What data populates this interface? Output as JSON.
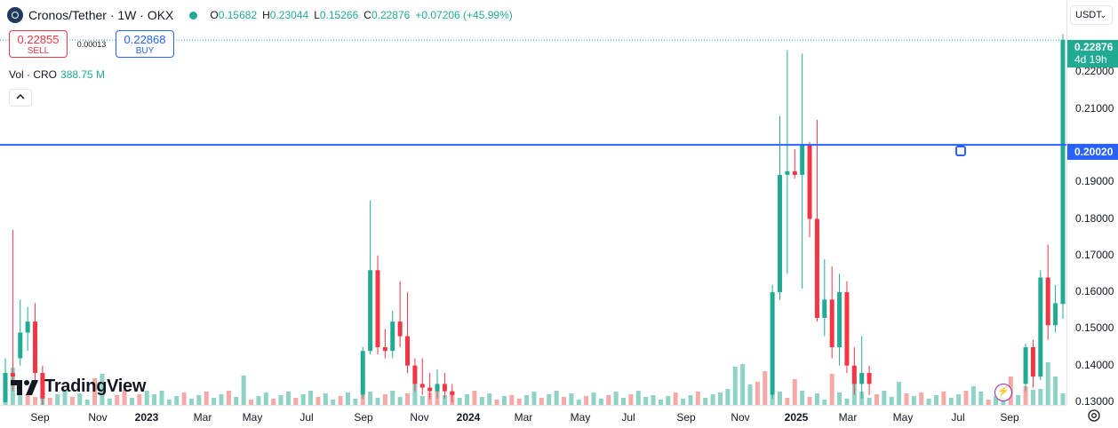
{
  "symbol": {
    "title": "Cronos/Tether · 1W · OKX",
    "ohlc": [
      {
        "key": "O",
        "value": "0.15682"
      },
      {
        "key": "H",
        "value": "0.23044"
      },
      {
        "key": "L",
        "value": "0.15266"
      },
      {
        "key": "C",
        "value": "0.22876"
      },
      {
        "key": "",
        "value": "+0.07206 (+45.99%)"
      }
    ]
  },
  "trade": {
    "sell_price": "0.22855",
    "sell_label": "SELL",
    "spread": "0.00013",
    "buy_price": "0.22868",
    "buy_label": "BUY"
  },
  "volume": {
    "label": "Vol · CRO",
    "value": "388.75 M"
  },
  "collapse_icon": "chevron-up-icon",
  "logo_text": "TradingView",
  "currency": "USDT",
  "current_price": {
    "price": "0.22876",
    "countdown": "4d 19h"
  },
  "hline_price": "0.20020",
  "colors": {
    "up": "#22ab94",
    "down": "#f23645",
    "up_vol": "#8fd3c7",
    "down_vol": "#f7a9a7",
    "hline": "#2962ff"
  },
  "price_ticks": [
    "0.22000",
    "0.21000",
    "0.19000",
    "0.18000",
    "0.17000",
    "0.16000",
    "0.15000",
    "0.14000",
    "0.13000"
  ],
  "time_ticks": [
    {
      "label": "Sep",
      "bold": false
    },
    {
      "label": "Nov",
      "bold": false
    },
    {
      "label": "2023",
      "bold": true
    },
    {
      "label": "Mar",
      "bold": false
    },
    {
      "label": "May",
      "bold": false
    },
    {
      "label": "Jul",
      "bold": false
    },
    {
      "label": "Sep",
      "bold": false
    },
    {
      "label": "Nov",
      "bold": false
    },
    {
      "label": "2024",
      "bold": true
    },
    {
      "label": "Mar",
      "bold": false
    },
    {
      "label": "May",
      "bold": false
    },
    {
      "label": "Jul",
      "bold": false
    },
    {
      "label": "Sep",
      "bold": false
    },
    {
      "label": "Nov",
      "bold": false
    },
    {
      "label": "2025",
      "bold": true
    },
    {
      "label": "Mar",
      "bold": false
    },
    {
      "label": "May",
      "bold": false
    },
    {
      "label": "Jul",
      "bold": false
    },
    {
      "label": "Sep",
      "bold": false
    }
  ],
  "chart_data": {
    "type": "candlestick",
    "interval": "1W",
    "y_range": [
      0.13,
      0.232
    ],
    "candles": [
      {
        "i": 0,
        "o": 0.13,
        "h": 0.142,
        "l": 0.13,
        "c": 0.138
      },
      {
        "i": 1,
        "o": 0.138,
        "h": 0.177,
        "l": 0.133,
        "c": 0.137
      },
      {
        "i": 2,
        "o": 0.142,
        "h": 0.158,
        "l": 0.14,
        "c": 0.149
      },
      {
        "i": 3,
        "o": 0.149,
        "h": 0.156,
        "l": 0.144,
        "c": 0.152
      },
      {
        "i": 4,
        "o": 0.152,
        "h": 0.157,
        "l": 0.136,
        "c": 0.138
      },
      {
        "i": 5,
        "o": 0.138,
        "h": 0.14,
        "l": 0.129,
        "c": 0.131
      },
      {
        "i": 48,
        "o": 0.132,
        "h": 0.145,
        "l": 0.131,
        "c": 0.144
      },
      {
        "i": 49,
        "o": 0.144,
        "h": 0.185,
        "l": 0.143,
        "c": 0.166
      },
      {
        "i": 50,
        "o": 0.166,
        "h": 0.17,
        "l": 0.143,
        "c": 0.145
      },
      {
        "i": 51,
        "o": 0.145,
        "h": 0.15,
        "l": 0.142,
        "c": 0.144
      },
      {
        "i": 52,
        "o": 0.144,
        "h": 0.155,
        "l": 0.142,
        "c": 0.152
      },
      {
        "i": 53,
        "o": 0.152,
        "h": 0.163,
        "l": 0.145,
        "c": 0.148
      },
      {
        "i": 54,
        "o": 0.148,
        "h": 0.16,
        "l": 0.138,
        "c": 0.14
      },
      {
        "i": 55,
        "o": 0.14,
        "h": 0.142,
        "l": 0.133,
        "c": 0.135
      },
      {
        "i": 56,
        "o": 0.135,
        "h": 0.142,
        "l": 0.132,
        "c": 0.134
      },
      {
        "i": 57,
        "o": 0.134,
        "h": 0.138,
        "l": 0.131,
        "c": 0.133
      },
      {
        "i": 58,
        "o": 0.133,
        "h": 0.139,
        "l": 0.131,
        "c": 0.135
      },
      {
        "i": 59,
        "o": 0.135,
        "h": 0.138,
        "l": 0.131,
        "c": 0.133
      },
      {
        "i": 60,
        "o": 0.133,
        "h": 0.135,
        "l": 0.13,
        "c": 0.132
      },
      {
        "i": 103,
        "o": 0.132,
        "h": 0.162,
        "l": 0.131,
        "c": 0.16
      },
      {
        "i": 104,
        "o": 0.16,
        "h": 0.208,
        "l": 0.158,
        "c": 0.192
      },
      {
        "i": 105,
        "o": 0.192,
        "h": 0.226,
        "l": 0.165,
        "c": 0.193
      },
      {
        "i": 106,
        "o": 0.193,
        "h": 0.199,
        "l": 0.191,
        "c": 0.192
      },
      {
        "i": 107,
        "o": 0.192,
        "h": 0.225,
        "l": 0.161,
        "c": 0.2
      },
      {
        "i": 108,
        "o": 0.2,
        "h": 0.201,
        "l": 0.175,
        "c": 0.18
      },
      {
        "i": 109,
        "o": 0.18,
        "h": 0.207,
        "l": 0.152,
        "c": 0.153
      },
      {
        "i": 110,
        "o": 0.153,
        "h": 0.169,
        "l": 0.148,
        "c": 0.158
      },
      {
        "i": 111,
        "o": 0.158,
        "h": 0.167,
        "l": 0.142,
        "c": 0.145
      },
      {
        "i": 112,
        "o": 0.145,
        "h": 0.165,
        "l": 0.14,
        "c": 0.16
      },
      {
        "i": 113,
        "o": 0.16,
        "h": 0.163,
        "l": 0.138,
        "c": 0.14
      },
      {
        "i": 114,
        "o": 0.14,
        "h": 0.145,
        "l": 0.132,
        "c": 0.135
      },
      {
        "i": 115,
        "o": 0.135,
        "h": 0.148,
        "l": 0.131,
        "c": 0.138
      },
      {
        "i": 116,
        "o": 0.138,
        "h": 0.14,
        "l": 0.132,
        "c": 0.135
      },
      {
        "i": 137,
        "o": 0.135,
        "h": 0.146,
        "l": 0.133,
        "c": 0.145
      },
      {
        "i": 138,
        "o": 0.145,
        "h": 0.147,
        "l": 0.134,
        "c": 0.137
      },
      {
        "i": 139,
        "o": 0.137,
        "h": 0.166,
        "l": 0.136,
        "c": 0.164
      },
      {
        "i": 140,
        "o": 0.164,
        "h": 0.173,
        "l": 0.147,
        "c": 0.151
      },
      {
        "i": 141,
        "o": 0.151,
        "h": 0.162,
        "l": 0.149,
        "c": 0.157
      },
      {
        "i": 142,
        "o": 0.1568,
        "h": 0.2304,
        "l": 0.1527,
        "c": 0.2288
      }
    ],
    "volume_bars": [
      {
        "i": 0,
        "v": 0.11,
        "up": true
      },
      {
        "i": 1,
        "v": 0.42,
        "up": true
      },
      {
        "i": 2,
        "v": 0.15,
        "up": true
      },
      {
        "i": 3,
        "v": 0.12,
        "up": false
      },
      {
        "i": 4,
        "v": 0.09,
        "up": false
      },
      {
        "i": 12,
        "v": 0.3,
        "up": false
      },
      {
        "i": 13,
        "v": 0.35,
        "up": true
      },
      {
        "i": 16,
        "v": 0.17,
        "up": false
      },
      {
        "i": 20,
        "v": 0.12,
        "up": true
      },
      {
        "i": 21,
        "v": 0.16,
        "up": true
      },
      {
        "i": 32,
        "v": 0.33,
        "up": true
      },
      {
        "i": 55,
        "v": 0.31,
        "up": true
      },
      {
        "i": 58,
        "v": 0.2,
        "up": false
      },
      {
        "i": 68,
        "v": 0.11,
        "up": false
      },
      {
        "i": 87,
        "v": 0.11,
        "up": true
      },
      {
        "i": 96,
        "v": 0.14,
        "up": true
      },
      {
        "i": 97,
        "v": 0.18,
        "up": true
      },
      {
        "i": 98,
        "v": 0.43,
        "up": true
      },
      {
        "i": 99,
        "v": 0.46,
        "up": true
      },
      {
        "i": 100,
        "v": 0.23,
        "up": true
      },
      {
        "i": 101,
        "v": 0.26,
        "up": false
      },
      {
        "i": 102,
        "v": 0.38,
        "up": false
      },
      {
        "i": 106,
        "v": 0.29,
        "up": false
      },
      {
        "i": 111,
        "v": 0.35,
        "up": false
      },
      {
        "i": 114,
        "v": 0.3,
        "up": true
      },
      {
        "i": 120,
        "v": 0.26,
        "up": true
      },
      {
        "i": 121,
        "v": 0.13,
        "up": false
      },
      {
        "i": 130,
        "v": 0.21,
        "up": true
      },
      {
        "i": 131,
        "v": 0.15,
        "up": true
      },
      {
        "i": 135,
        "v": 0.32,
        "up": false
      },
      {
        "i": 137,
        "v": 0.21,
        "up": false
      },
      {
        "i": 138,
        "v": 0.17,
        "up": true
      },
      {
        "i": 139,
        "v": 0.18,
        "up": true
      },
      {
        "i": 140,
        "v": 0.48,
        "up": true
      },
      {
        "i": 141,
        "v": 0.32,
        "up": true
      },
      {
        "i": 142,
        "v": 0.13,
        "up": true
      }
    ]
  }
}
